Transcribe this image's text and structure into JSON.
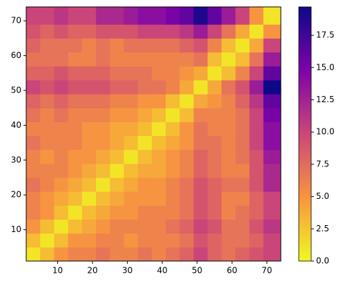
{
  "chart_data": {
    "type": "heatmap",
    "x_edges": [
      1,
      5,
      9,
      13,
      17,
      21,
      25,
      29,
      33,
      37,
      41,
      45,
      49,
      53,
      57,
      61,
      65,
      69,
      74
    ],
    "y_edges": [
      1,
      5,
      9,
      13,
      17,
      21,
      25,
      29,
      33,
      37,
      41,
      45,
      49,
      53,
      57,
      61,
      65,
      69,
      74
    ],
    "values": [
      [
        1,
        3,
        5,
        6,
        6,
        7,
        6,
        6,
        7,
        6,
        7,
        8,
        10,
        8,
        7,
        8,
        9,
        10
      ],
      [
        3,
        1,
        3,
        5,
        5,
        6,
        6,
        5,
        6,
        6,
        6,
        7,
        9,
        8,
        7,
        7,
        8,
        10
      ],
      [
        5,
        3,
        1,
        3,
        4,
        5,
        6,
        6,
        6,
        6,
        7,
        8,
        10,
        9,
        7,
        7,
        9,
        11
      ],
      [
        6,
        5,
        3,
        1,
        3,
        4,
        5,
        5,
        6,
        6,
        6,
        7,
        9,
        8,
        6,
        7,
        8,
        10
      ],
      [
        6,
        5,
        4,
        3,
        1,
        3,
        4,
        5,
        5,
        5,
        6,
        7,
        9,
        8,
        6,
        6,
        8,
        10
      ],
      [
        7,
        6,
        5,
        4,
        3,
        1,
        3,
        4,
        5,
        5,
        6,
        7,
        9,
        8,
        7,
        7,
        9,
        12
      ],
      [
        6,
        6,
        6,
        5,
        4,
        3,
        1,
        3,
        4,
        4,
        5,
        6,
        8,
        7,
        6,
        6,
        9,
        12
      ],
      [
        6,
        5,
        6,
        5,
        5,
        4,
        3,
        1,
        3,
        4,
        5,
        6,
        8,
        7,
        6,
        7,
        9,
        13
      ],
      [
        7,
        6,
        6,
        6,
        5,
        5,
        4,
        3,
        1,
        3,
        4,
        5,
        7,
        7,
        6,
        7,
        10,
        14
      ],
      [
        6,
        6,
        6,
        6,
        5,
        5,
        4,
        4,
        3,
        1,
        3,
        5,
        7,
        6,
        6,
        7,
        10,
        14
      ],
      [
        7,
        6,
        7,
        6,
        6,
        6,
        5,
        5,
        4,
        3,
        1,
        3,
        6,
        6,
        6,
        7,
        10,
        15
      ],
      [
        8,
        7,
        8,
        7,
        7,
        7,
        6,
        6,
        5,
        5,
        3,
        1,
        4,
        5,
        6,
        8,
        11,
        16
      ],
      [
        10,
        9,
        10,
        9,
        9,
        9,
        8,
        8,
        7,
        7,
        6,
        4,
        1,
        4,
        7,
        9,
        13,
        19.7
      ],
      [
        8,
        8,
        9,
        8,
        8,
        8,
        7,
        7,
        7,
        6,
        6,
        5,
        4,
        1,
        3,
        6,
        10,
        16
      ],
      [
        7,
        7,
        7,
        6,
        6,
        7,
        6,
        6,
        6,
        6,
        6,
        6,
        7,
        3,
        1,
        3,
        7,
        13
      ],
      [
        8,
        7,
        7,
        7,
        6,
        7,
        6,
        7,
        7,
        7,
        7,
        8,
        9,
        6,
        3,
        1,
        4,
        10
      ],
      [
        9,
        8,
        9,
        8,
        8,
        9,
        9,
        9,
        10,
        10,
        10,
        11,
        13,
        10,
        7,
        4,
        1,
        5
      ],
      [
        10,
        10,
        11,
        10,
        10,
        12,
        12,
        13,
        14,
        14,
        15,
        16,
        19,
        16,
        13,
        10,
        5,
        1
      ]
    ],
    "xlim": [
      1,
      74
    ],
    "ylim": [
      1,
      74
    ],
    "xticks": [
      10,
      20,
      30,
      40,
      50,
      60,
      70
    ],
    "yticks": [
      10,
      20,
      30,
      40,
      50,
      60,
      70
    ],
    "vlim": [
      0,
      19.7
    ],
    "colorbar_ticks": [
      {
        "value": 0,
        "label": "0.0"
      },
      {
        "value": 2.5,
        "label": "2.5"
      },
      {
        "value": 5,
        "label": "5.0"
      },
      {
        "value": 7.5,
        "label": "7.5"
      },
      {
        "value": 10,
        "label": "10.0"
      },
      {
        "value": 12.5,
        "label": "12.5"
      },
      {
        "value": 15,
        "label": "15.0"
      },
      {
        "value": 17.5,
        "label": "17.5"
      }
    ],
    "colorscale": [
      "#f0f921",
      "#f89540",
      "#cc4778",
      "#7e03a8",
      "#0d0887"
    ]
  }
}
